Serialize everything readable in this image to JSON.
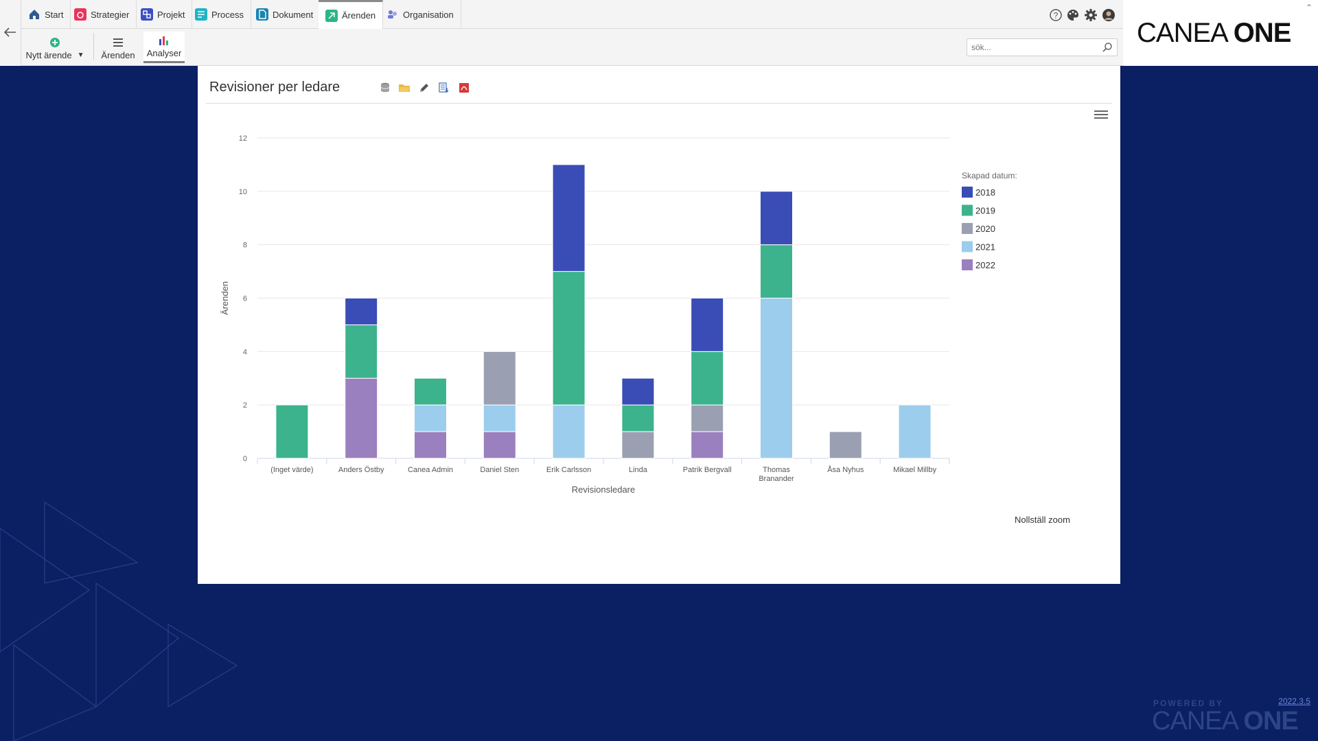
{
  "nav": {
    "tabs": [
      {
        "label": "Start",
        "icon": "home-icon",
        "color": "#2f5a8f"
      },
      {
        "label": "Strategier",
        "icon": "strategy-icon",
        "color": "#e8355c"
      },
      {
        "label": "Projekt",
        "icon": "project-icon",
        "color": "#3b4fc4"
      },
      {
        "label": "Process",
        "icon": "process-icon",
        "color": "#1fb3c4"
      },
      {
        "label": "Dokument",
        "icon": "document-icon",
        "color": "#1a86b4"
      },
      {
        "label": "Ärenden",
        "icon": "cases-icon",
        "color": "#2bb58a"
      },
      {
        "label": "Organisation",
        "icon": "organisation-icon",
        "color": "#6d7bd6"
      }
    ],
    "active_tab": "Ärenden"
  },
  "toolbar": {
    "new_case_label": "Nytt ärende",
    "cases_label": "Ärenden",
    "analyses_label": "Analyser"
  },
  "search": {
    "placeholder": "sök..."
  },
  "logo": {
    "part1": "CANEA ",
    "part2": "ONE"
  },
  "panel": {
    "title": "Revisioner per ledare",
    "reset_zoom": "Nollställ zoom"
  },
  "footer": {
    "version": "2022.3.5",
    "powered_by": "POWERED BY",
    "logo_part1": "CANEA ",
    "logo_part2": "ONE"
  },
  "chart_data": {
    "type": "bar",
    "stacked": true,
    "title": "",
    "xlabel": "Revisionsledare",
    "ylabel": "Ärenden",
    "ylim": [
      0,
      12
    ],
    "yticks": [
      0,
      2,
      4,
      6,
      8,
      10,
      12
    ],
    "grid": true,
    "legend_title": "Skapad datum:",
    "legend_position": "right",
    "categories": [
      "(Inget värde)",
      "Anders Östby",
      "Canea Admin",
      "Daniel Sten",
      "Erik Carlsson",
      "Linda",
      "Patrik Bergvall",
      "Thomas Branander",
      "Åsa Nyhus",
      "Mikael Millby"
    ],
    "series": [
      {
        "name": "2018",
        "color": "#3a4cb5",
        "values": [
          0,
          1,
          0,
          0,
          4,
          1,
          2,
          2,
          0,
          0
        ]
      },
      {
        "name": "2019",
        "color": "#3cb38d",
        "values": [
          2,
          2,
          1,
          0,
          5,
          1,
          2,
          2,
          0,
          0
        ]
      },
      {
        "name": "2020",
        "color": "#9aa0b1",
        "values": [
          0,
          0,
          0,
          2,
          0,
          1,
          1,
          0,
          1,
          0
        ]
      },
      {
        "name": "2021",
        "color": "#9ccdec",
        "values": [
          0,
          0,
          1,
          1,
          2,
          0,
          0,
          6,
          0,
          2
        ]
      },
      {
        "name": "2022",
        "color": "#9b80bf",
        "values": [
          0,
          3,
          1,
          1,
          0,
          0,
          1,
          0,
          0,
          0
        ]
      }
    ]
  }
}
